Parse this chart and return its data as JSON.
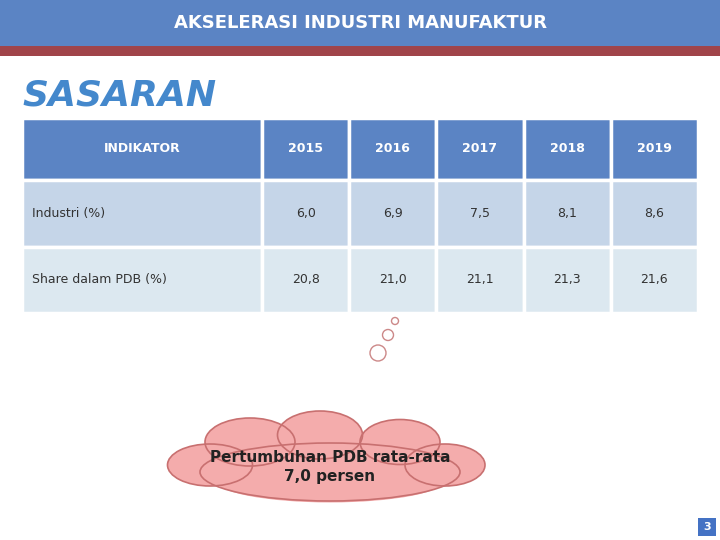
{
  "title": "AKSELERASI INDUSTRI MANUFAKTUR",
  "sasaran_text": "SASARAN",
  "header_bg": "#5B84C4",
  "header_text_color": "#FFFFFF",
  "row1_bg": "#C5D5E8",
  "row2_bg": "#DCE8F0",
  "table_border_color": "#FFFFFF",
  "columns": [
    "INDIKATOR",
    "2015",
    "2016",
    "2017",
    "2018",
    "2019"
  ],
  "rows": [
    [
      "Industri (%)",
      "6,0",
      "6,9",
      "7,5",
      "8,1",
      "8,6"
    ],
    [
      "Share dalam PDB (%)",
      "20,8",
      "21,0",
      "21,1",
      "21,3",
      "21,6"
    ]
  ],
  "cloud_text_line1": "Pertumbuhan PDB rata-rata",
  "cloud_text_line2": "7,0 persen",
  "cloud_color": "#F4ACAC",
  "cloud_border_color": "#C87070",
  "title_bar_color": "#5B84C4",
  "title_underline_color": "#A0444A",
  "bg_color": "#FFFFFF",
  "page_num": "3",
  "page_num_bg": "#4472C4",
  "sasaran_color": "#4488CC"
}
